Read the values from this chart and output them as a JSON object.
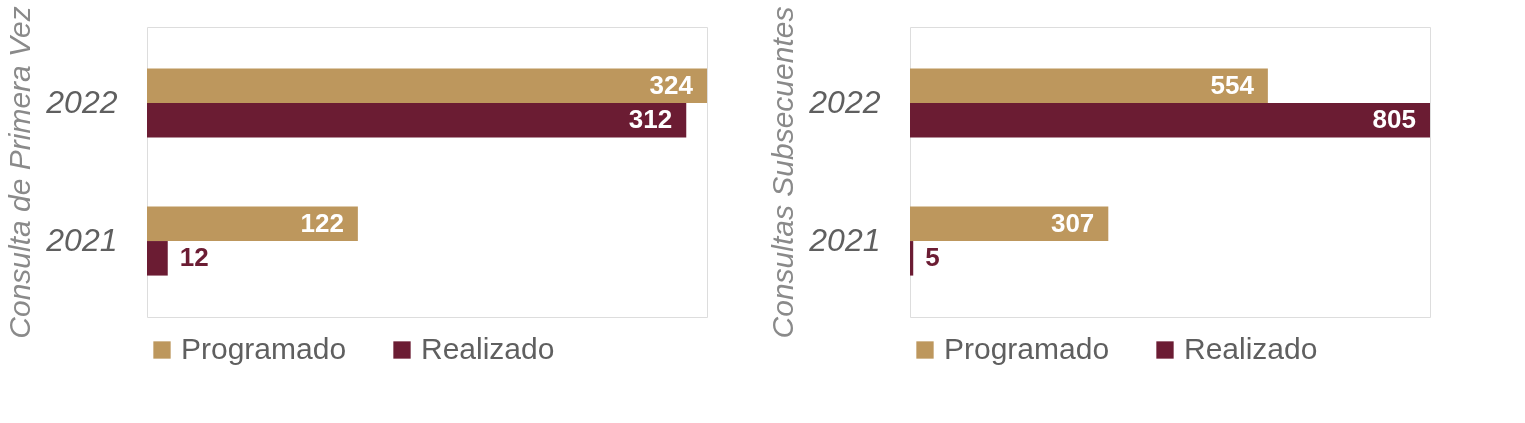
{
  "chart_data": [
    {
      "type": "bar",
      "orientation": "horizontal",
      "ylabel": "Consulta de Primera Vez",
      "categories": [
        "2022",
        "2021"
      ],
      "series": [
        {
          "name": "Programado",
          "color": "#bd975d",
          "values": [
            324,
            122
          ]
        },
        {
          "name": "Realizado",
          "color": "#6b1c33",
          "values": [
            312,
            12
          ]
        }
      ],
      "data_labels": true,
      "legend": "bottom",
      "tick_labels": "y",
      "grid": false
    },
    {
      "type": "bar",
      "orientation": "horizontal",
      "ylabel": "Consultas Subsecuentes",
      "categories": [
        "2022",
        "2021"
      ],
      "series": [
        {
          "name": "Programado",
          "color": "#bd975d",
          "values": [
            554,
            307
          ]
        },
        {
          "name": "Realizado",
          "color": "#6b1c33",
          "values": [
            805,
            5
          ]
        }
      ],
      "data_labels": true,
      "legend": "bottom",
      "tick_labels": "y",
      "grid": false
    }
  ]
}
